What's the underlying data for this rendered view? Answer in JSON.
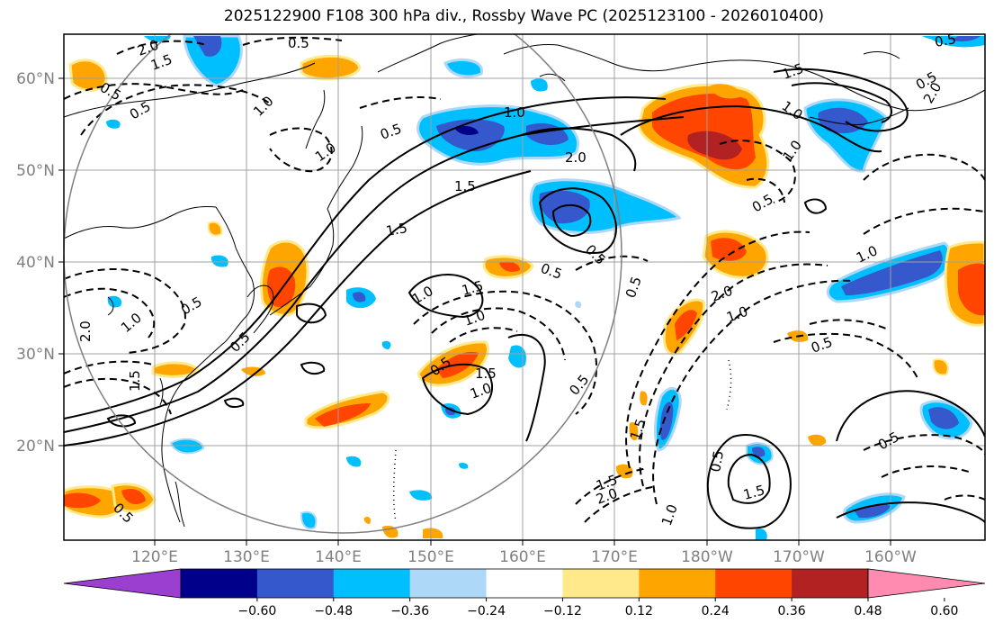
{
  "title": "2025122900 F108 300 hPa div., Rossby Wave PC (2025123100 - 2026010400)",
  "lon_labels": [
    "120°E",
    "130°E",
    "140°E",
    "150°E",
    "160°E",
    "170°E",
    "180°W",
    "170°W",
    "160°W"
  ],
  "lat_labels": [
    "60°N",
    "50°N",
    "40°N",
    "30°N",
    "20°N"
  ],
  "colorbar": {
    "ticks": [
      "−0.60",
      "−0.48",
      "−0.36",
      "−0.24",
      "−0.12",
      "0.12",
      "0.24",
      "0.36",
      "0.48",
      "0.60"
    ],
    "colors": [
      "#9a3fd0",
      "#00008b",
      "#3558cc",
      "#00bfff",
      "#add8f8",
      "#ffffff",
      "#ffe98a",
      "#ffa500",
      "#ff4500",
      "#b22222",
      "#ff8bb0"
    ]
  },
  "contour_labels": [
    "0.5",
    "2.0",
    "1.5",
    "0.5",
    "1.0",
    "0.5",
    "1.0",
    "1.0",
    "2.0",
    "1.5",
    "0.5",
    "1.0",
    "1.5",
    "0.5",
    "2.0",
    "0.5",
    "1.0",
    "0.5",
    "1.5",
    "1.0",
    "0.5",
    "1.5",
    "1.0",
    "0.5",
    "0.5",
    "0.5",
    "1.5",
    "2.0",
    "1.0",
    "0.5",
    "1.5",
    "0.5",
    "2.0",
    "1.0",
    "0.5",
    "1.0",
    "0.5",
    "1.0",
    "1.5",
    "1.0",
    "0.5",
    "0.5",
    "1.5",
    "0.5",
    "2.0",
    "1.5"
  ]
}
